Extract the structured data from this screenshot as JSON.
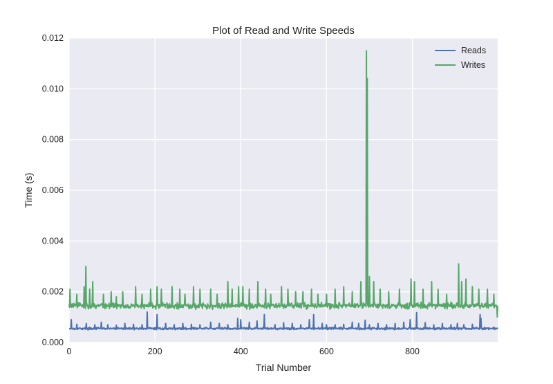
{
  "chart_data": {
    "type": "line",
    "title": "Plot of Read and Write Speeds",
    "xlabel": "Trial Number",
    "ylabel": "Time (s)",
    "xlim": [
      0,
      999
    ],
    "ylim": [
      0,
      0.012
    ],
    "xticks": [
      0,
      200,
      400,
      600,
      800
    ],
    "xtick_labels": [
      "0",
      "200",
      "400",
      "600",
      "800"
    ],
    "yticks": [
      0,
      0.002,
      0.004,
      0.006,
      0.008,
      0.01,
      0.012
    ],
    "ytick_labels": [
      "0.000",
      "0.002",
      "0.004",
      "0.006",
      "0.008",
      "0.010",
      "0.012"
    ],
    "grid": true,
    "legend_position": "top-right",
    "x_count": 1000,
    "series": [
      {
        "name": "Reads",
        "color": "#4c72b0",
        "baseline": 0.00055,
        "noise": 6e-05,
        "spikes": [
          [
            5,
            0.0009
          ],
          [
            18,
            0.00072
          ],
          [
            40,
            0.00075
          ],
          [
            60,
            0.0007
          ],
          [
            75,
            0.0008
          ],
          [
            90,
            0.0007
          ],
          [
            110,
            0.00068
          ],
          [
            130,
            0.00075
          ],
          [
            150,
            0.00072
          ],
          [
            170,
            0.0007
          ],
          [
            182,
            0.0012
          ],
          [
            205,
            0.0011
          ],
          [
            225,
            0.00075
          ],
          [
            245,
            0.0007
          ],
          [
            265,
            0.00075
          ],
          [
            285,
            0.00072
          ],
          [
            305,
            0.0007
          ],
          [
            330,
            0.0008
          ],
          [
            350,
            0.00075
          ],
          [
            370,
            0.0007
          ],
          [
            393,
            0.00095
          ],
          [
            400,
            0.0009
          ],
          [
            420,
            0.0008
          ],
          [
            438,
            0.00085
          ],
          [
            455,
            0.0011
          ],
          [
            480,
            0.0007
          ],
          [
            500,
            0.00078
          ],
          [
            520,
            0.00075
          ],
          [
            540,
            0.0007
          ],
          [
            560,
            0.0009
          ],
          [
            570,
            0.0011
          ],
          [
            590,
            0.00075
          ],
          [
            600,
            0.0007
          ],
          [
            620,
            0.0007
          ],
          [
            640,
            0.00072
          ],
          [
            660,
            0.0008
          ],
          [
            675,
            0.00075
          ],
          [
            690,
            0.00088
          ],
          [
            700,
            0.0007
          ],
          [
            720,
            0.00075
          ],
          [
            740,
            0.0007
          ],
          [
            760,
            0.00075
          ],
          [
            780,
            0.0008
          ],
          [
            795,
            0.0009
          ],
          [
            810,
            0.00118
          ],
          [
            830,
            0.00078
          ],
          [
            850,
            0.0007
          ],
          [
            870,
            0.00075
          ],
          [
            890,
            0.0007
          ],
          [
            905,
            0.00075
          ],
          [
            920,
            0.0007
          ],
          [
            940,
            0.00072
          ],
          [
            960,
            0.00095
          ],
          [
            958,
            0.0011
          ],
          [
            985,
            0.00055
          ]
        ]
      },
      {
        "name": "Writes",
        "color": "#55a868",
        "baseline": 0.00145,
        "noise": 0.00017,
        "spikes": [
          [
            2,
            0.0021
          ],
          [
            18,
            0.0019
          ],
          [
            35,
            0.0022
          ],
          [
            39,
            0.003
          ],
          [
            48,
            0.0021
          ],
          [
            55,
            0.0024
          ],
          [
            80,
            0.0019
          ],
          [
            98,
            0.002
          ],
          [
            110,
            0.0018
          ],
          [
            125,
            0.002
          ],
          [
            155,
            0.0022
          ],
          [
            170,
            0.0019
          ],
          [
            190,
            0.0021
          ],
          [
            205,
            0.0022
          ],
          [
            215,
            0.0021
          ],
          [
            240,
            0.0022
          ],
          [
            258,
            0.0021
          ],
          [
            270,
            0.0019
          ],
          [
            290,
            0.0022
          ],
          [
            305,
            0.0021
          ],
          [
            330,
            0.0021
          ],
          [
            345,
            0.0019
          ],
          [
            370,
            0.0024
          ],
          [
            380,
            0.0021
          ],
          [
            395,
            0.0022
          ],
          [
            405,
            0.0022
          ],
          [
            420,
            0.0021
          ],
          [
            440,
            0.0024
          ],
          [
            458,
            0.0021
          ],
          [
            470,
            0.0019
          ],
          [
            495,
            0.0022
          ],
          [
            510,
            0.0021
          ],
          [
            528,
            0.002
          ],
          [
            545,
            0.002
          ],
          [
            565,
            0.0021
          ],
          [
            580,
            0.0019
          ],
          [
            600,
            0.0019
          ],
          [
            620,
            0.0021
          ],
          [
            640,
            0.0022
          ],
          [
            660,
            0.002
          ],
          [
            680,
            0.0024
          ],
          [
            693,
            0.0115
          ],
          [
            695,
            0.0104
          ],
          [
            700,
            0.0026
          ],
          [
            710,
            0.0024
          ],
          [
            725,
            0.0021
          ],
          [
            745,
            0.002
          ],
          [
            770,
            0.0021
          ],
          [
            797,
            0.0025
          ],
          [
            805,
            0.0024
          ],
          [
            825,
            0.0021
          ],
          [
            845,
            0.0024
          ],
          [
            860,
            0.0021
          ],
          [
            880,
            0.0019
          ],
          [
            908,
            0.0031
          ],
          [
            915,
            0.0024
          ],
          [
            925,
            0.0025
          ],
          [
            940,
            0.0022
          ],
          [
            955,
            0.0021
          ],
          [
            975,
            0.0021
          ],
          [
            990,
            0.0019
          ],
          [
            998,
            0.001
          ]
        ]
      }
    ]
  }
}
